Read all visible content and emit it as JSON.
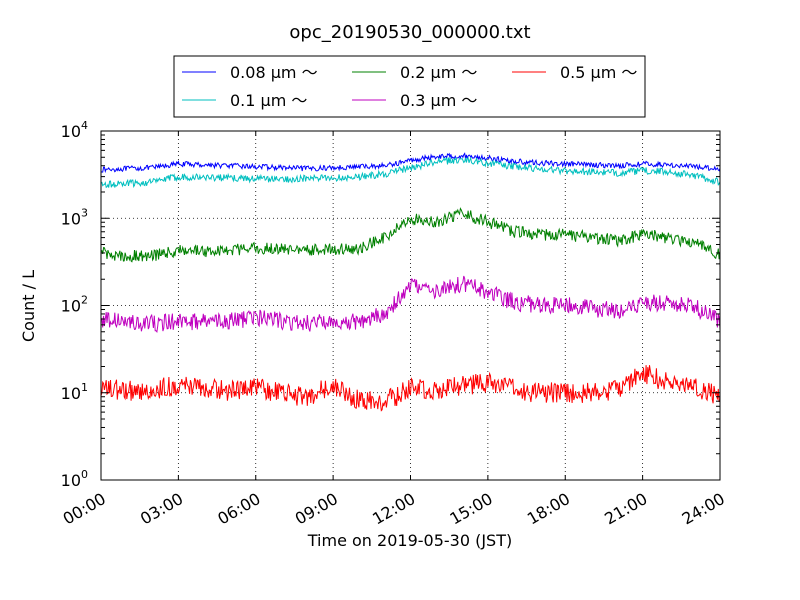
{
  "chart_data": {
    "type": "line",
    "title": "opc_20190530_000000.txt",
    "xlabel": "Time on 2019-05-30 (JST)",
    "ylabel": "Count / L",
    "y_scale": "log",
    "ylim": [
      1,
      10000
    ],
    "y_ticks": [
      {
        "value": 1,
        "base": "10",
        "exp": "0"
      },
      {
        "value": 10,
        "base": "10",
        "exp": "1"
      },
      {
        "value": 100,
        "base": "10",
        "exp": "2"
      },
      {
        "value": 1000,
        "base": "10",
        "exp": "3"
      },
      {
        "value": 10000,
        "base": "10",
        "exp": "4"
      }
    ],
    "xlim": [
      "00:00",
      "24:00"
    ],
    "x_ticks": [
      "00:00",
      "03:00",
      "06:00",
      "09:00",
      "12:00",
      "15:00",
      "18:00",
      "21:00",
      "24:00"
    ],
    "grid": true,
    "legend_position": "top-center",
    "series": [
      {
        "name": "0.08 μm ～",
        "color": "#0000ff",
        "x": [
          "00:00",
          "01:00",
          "02:00",
          "03:00",
          "04:00",
          "05:00",
          "06:00",
          "07:00",
          "08:00",
          "09:00",
          "10:00",
          "11:00",
          "12:00",
          "13:00",
          "14:00",
          "15:00",
          "16:00",
          "17:00",
          "18:00",
          "19:00",
          "20:00",
          "21:00",
          "22:00",
          "23:00",
          "24:00"
        ],
        "y": [
          3600,
          3700,
          3800,
          4200,
          4100,
          4000,
          3900,
          3800,
          3700,
          3800,
          3900,
          4000,
          4600,
          5100,
          5200,
          4900,
          4500,
          4300,
          4200,
          4100,
          4000,
          4200,
          4100,
          3900,
          3700
        ]
      },
      {
        "name": "0.1 μm ～",
        "color": "#00bfbf",
        "x": [
          "00:00",
          "01:00",
          "02:00",
          "03:00",
          "04:00",
          "05:00",
          "06:00",
          "07:00",
          "08:00",
          "09:00",
          "10:00",
          "11:00",
          "12:00",
          "13:00",
          "14:00",
          "15:00",
          "16:00",
          "17:00",
          "18:00",
          "19:00",
          "20:00",
          "21:00",
          "22:00",
          "23:00",
          "24:00"
        ],
        "y": [
          2400,
          2500,
          2600,
          3000,
          2950,
          2900,
          2850,
          2800,
          2850,
          2900,
          3000,
          3200,
          3800,
          4400,
          4700,
          4300,
          3900,
          3700,
          3500,
          3400,
          3300,
          3500,
          3400,
          3100,
          2600
        ]
      },
      {
        "name": "0.2 μm ～",
        "color": "#008000",
        "x": [
          "00:00",
          "01:00",
          "02:00",
          "03:00",
          "04:00",
          "05:00",
          "06:00",
          "07:00",
          "08:00",
          "09:00",
          "10:00",
          "11:00",
          "12:00",
          "13:00",
          "14:00",
          "15:00",
          "16:00",
          "17:00",
          "18:00",
          "19:00",
          "20:00",
          "21:00",
          "22:00",
          "23:00",
          "24:00"
        ],
        "y": [
          400,
          370,
          370,
          430,
          420,
          430,
          460,
          440,
          430,
          440,
          450,
          600,
          1000,
          900,
          1150,
          900,
          700,
          650,
          650,
          600,
          560,
          650,
          600,
          520,
          380
        ]
      },
      {
        "name": "0.3 μm ～",
        "color": "#bf00bf",
        "x": [
          "00:00",
          "01:00",
          "02:00",
          "03:00",
          "04:00",
          "05:00",
          "06:00",
          "07:00",
          "08:00",
          "09:00",
          "10:00",
          "11:00",
          "12:00",
          "13:00",
          "14:00",
          "15:00",
          "16:00",
          "17:00",
          "18:00",
          "19:00",
          "20:00",
          "21:00",
          "22:00",
          "23:00",
          "24:00"
        ],
        "y": [
          70,
          64,
          62,
          65,
          64,
          66,
          72,
          67,
          62,
          66,
          64,
          80,
          170,
          140,
          180,
          140,
          110,
          100,
          100,
          92,
          88,
          110,
          105,
          98,
          65
        ]
      },
      {
        "name": "0.5 μm ～",
        "color": "#ff0000",
        "x": [
          "00:00",
          "01:00",
          "02:00",
          "03:00",
          "04:00",
          "05:00",
          "06:00",
          "07:00",
          "08:00",
          "09:00",
          "10:00",
          "11:00",
          "12:00",
          "13:00",
          "14:00",
          "15:00",
          "16:00",
          "17:00",
          "18:00",
          "19:00",
          "20:00",
          "21:00",
          "22:00",
          "23:00",
          "24:00"
        ],
        "y": [
          11,
          10.5,
          11,
          12,
          11,
          10.5,
          11.5,
          10,
          9,
          12,
          8,
          8,
          11,
          11,
          12,
          13,
          11,
          10,
          10,
          10,
          11,
          17,
          13,
          12,
          9
        ]
      }
    ]
  }
}
